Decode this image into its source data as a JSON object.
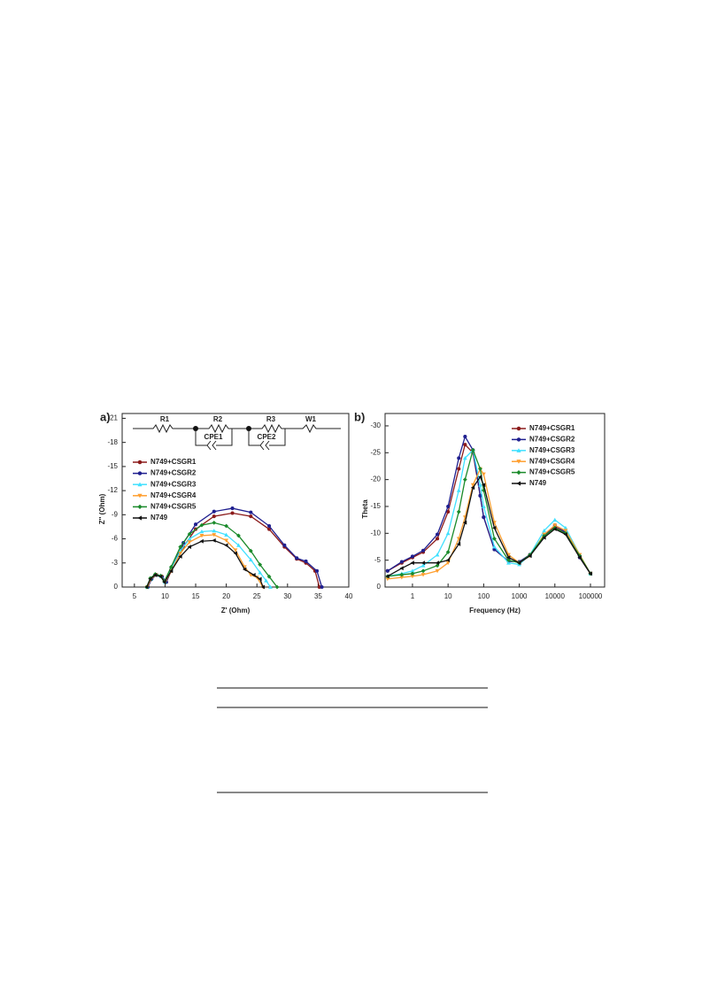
{
  "chart_data": [
    {
      "type": "line",
      "label": "a)",
      "x_label": "Z' (Ohm)",
      "y_label": "Z'' (Ohm)",
      "annotations": [
        "R1",
        "R2",
        "CPE1",
        "R3",
        "CPE2",
        "W1"
      ],
      "xlim": [
        3,
        40
      ],
      "xticks": [
        5,
        10,
        15,
        20,
        25,
        30,
        35,
        40
      ],
      "ylim": [
        0,
        -21.6
      ],
      "yticks": [
        0,
        -3,
        -6,
        -9,
        -12,
        -15,
        -18,
        -21
      ],
      "series": [
        {
          "name": "N749+CSGR1",
          "color": "#8b1a1a",
          "marker": "circle",
          "x": [
            7.2,
            7.8,
            8.6,
            9.5,
            10.2,
            11,
            13,
            15,
            18,
            21,
            24,
            27,
            29.5,
            31.5,
            33,
            34.5,
            35.2
          ],
          "values": [
            0,
            -1,
            -1.5,
            -1.3,
            -0.6,
            -2,
            -5,
            -7.2,
            -8.8,
            -9.2,
            -8.8,
            -7.2,
            -5,
            -3.5,
            -3,
            -2,
            0
          ]
        },
        {
          "name": "N749+CSGR2",
          "color": "#1f1f8f",
          "marker": "circle",
          "x": [
            7.2,
            7.8,
            8.6,
            9.5,
            10.2,
            11,
            13,
            15,
            18,
            21,
            24,
            27,
            29.5,
            31.5,
            33,
            34.8,
            35.6
          ],
          "values": [
            0,
            -1,
            -1.5,
            -1.3,
            -0.6,
            -2.2,
            -5.5,
            -7.8,
            -9.4,
            -9.8,
            -9.3,
            -7.6,
            -5.2,
            -3.6,
            -3.2,
            -2,
            0
          ]
        },
        {
          "name": "N749+CSGR3",
          "color": "#40e0ff",
          "marker": "triangle-up",
          "x": [
            7.1,
            7.7,
            8.5,
            9.4,
            10,
            11,
            12.5,
            14,
            16,
            18,
            20,
            22,
            24,
            25.5,
            26.5,
            27.2
          ],
          "values": [
            0,
            -1,
            -1.5,
            -1.3,
            -0.6,
            -2.2,
            -4.5,
            -6,
            -6.9,
            -7,
            -6.5,
            -5.2,
            -3.4,
            -1.8,
            -0.8,
            0
          ]
        },
        {
          "name": "N749+CSGR4",
          "color": "#ff9f30",
          "marker": "triangle-down",
          "x": [
            7.1,
            7.7,
            8.5,
            9.4,
            10,
            11,
            12.5,
            14,
            16,
            18,
            20,
            21.5,
            23,
            24,
            25,
            26
          ],
          "values": [
            0,
            -1,
            -1.5,
            -1.3,
            -0.6,
            -2,
            -4.2,
            -5.6,
            -6.4,
            -6.5,
            -5.8,
            -4.6,
            -2.5,
            -1.5,
            -1.2,
            0
          ]
        },
        {
          "name": "N749+CSGR5",
          "color": "#1a8a2a",
          "marker": "diamond",
          "x": [
            7,
            7.6,
            8.4,
            9.3,
            9.9,
            11,
            12.5,
            14,
            16,
            18,
            20,
            22,
            24,
            25.5,
            27,
            28.3
          ],
          "values": [
            0,
            -1.1,
            -1.6,
            -1.4,
            -0.7,
            -2.5,
            -5,
            -6.6,
            -7.7,
            -8,
            -7.6,
            -6.4,
            -4.5,
            -2.8,
            -1.3,
            0
          ]
        },
        {
          "name": "N749",
          "color": "#111111",
          "marker": "triangle-left",
          "x": [
            7,
            7.6,
            8.4,
            9.3,
            9.9,
            11,
            12.5,
            14,
            16,
            18,
            20,
            21.5,
            23,
            24.5,
            25.5,
            26
          ],
          "values": [
            0,
            -1,
            -1.5,
            -1.3,
            -0.6,
            -2,
            -3.8,
            -5,
            -5.7,
            -5.8,
            -5.2,
            -4.2,
            -2.2,
            -1.5,
            -1,
            0
          ]
        }
      ]
    },
    {
      "type": "line",
      "label": "b)",
      "x_label": "Frequency (Hz)",
      "y_label": "Theta",
      "log_x": true,
      "xlim": [
        0.17,
        250000
      ],
      "xticks": [
        1,
        10,
        100,
        1000,
        10000,
        100000
      ],
      "ylim": [
        0,
        -32.3
      ],
      "yticks": [
        0,
        -5,
        -10,
        -15,
        -20,
        -25,
        -30
      ],
      "series": [
        {
          "name": "N749+CSGR1",
          "color": "#8b1a1a",
          "marker": "circle",
          "x": [
            0.2,
            0.5,
            1,
            2,
            5,
            10,
            20,
            30,
            50,
            80,
            100,
            200,
            500,
            1000,
            2000,
            5000,
            10000,
            20000,
            50000,
            100000
          ],
          "values": [
            -3,
            -4.5,
            -5.5,
            -6.5,
            -9,
            -14,
            -22,
            -26.5,
            -25,
            -17,
            -13,
            -7,
            -4.8,
            -4.7,
            -6,
            -9.5,
            -11.2,
            -10,
            -5.5,
            -2.5
          ]
        },
        {
          "name": "N749+CSGR2",
          "color": "#1f1f8f",
          "marker": "circle",
          "x": [
            0.2,
            0.5,
            1,
            2,
            5,
            10,
            20,
            30,
            50,
            80,
            100,
            200,
            500,
            1000,
            2000,
            5000,
            10000,
            20000,
            50000,
            100000
          ],
          "values": [
            -3,
            -4.7,
            -5.7,
            -6.8,
            -9.8,
            -15,
            -24,
            -28,
            -25.5,
            -17,
            -13,
            -7,
            -4.8,
            -4.7,
            -6,
            -9.5,
            -11.5,
            -10.2,
            -5.5,
            -2.5
          ]
        },
        {
          "name": "N749+CSGR3",
          "color": "#40e0ff",
          "marker": "triangle-up",
          "x": [
            0.2,
            0.5,
            1,
            2,
            5,
            10,
            20,
            30,
            50,
            80,
            100,
            200,
            500,
            1000,
            2000,
            5000,
            10000,
            20000,
            50000,
            100000
          ],
          "values": [
            -2,
            -2.5,
            -3,
            -4,
            -6,
            -10,
            -18,
            -24,
            -25.5,
            -19,
            -15,
            -7.5,
            -4.5,
            -4.2,
            -6,
            -10.5,
            -12.5,
            -11,
            -6,
            -2.5
          ]
        },
        {
          "name": "N749+CSGR4",
          "color": "#ff9f30",
          "marker": "triangle-down",
          "x": [
            0.2,
            0.5,
            1,
            2,
            5,
            10,
            20,
            30,
            50,
            80,
            100,
            200,
            500,
            1000,
            2000,
            5000,
            10000,
            20000,
            50000,
            100000
          ],
          "values": [
            -1.5,
            -1.8,
            -2,
            -2.3,
            -3,
            -4.5,
            -9,
            -13,
            -19,
            -22,
            -21,
            -12,
            -6,
            -4.5,
            -5.8,
            -9.8,
            -11.5,
            -10.5,
            -6,
            -2.5
          ]
        },
        {
          "name": "N749+CSGR5",
          "color": "#1a8a2a",
          "marker": "diamond",
          "x": [
            0.2,
            0.5,
            1,
            2,
            5,
            10,
            20,
            30,
            50,
            80,
            100,
            200,
            500,
            1000,
            2000,
            5000,
            10000,
            20000,
            50000,
            100000
          ],
          "values": [
            -2,
            -2.3,
            -2.5,
            -3,
            -4,
            -6.5,
            -14,
            -20,
            -25.5,
            -22,
            -18,
            -9,
            -5,
            -4.5,
            -6,
            -9.5,
            -11,
            -10,
            -5.8,
            -2.5
          ]
        },
        {
          "name": "N749",
          "color": "#111111",
          "marker": "triangle-left",
          "x": [
            0.2,
            0.5,
            1,
            2,
            5,
            10,
            20,
            30,
            50,
            80,
            100,
            200,
            500,
            1000,
            2000,
            5000,
            10000,
            20000,
            50000,
            100000
          ],
          "values": [
            -2,
            -3.5,
            -4.5,
            -4.5,
            -4.5,
            -5,
            -8,
            -12,
            -18.5,
            -20.5,
            -19,
            -11,
            -5.5,
            -4.5,
            -5.8,
            -9.2,
            -10.8,
            -9.8,
            -5.5,
            -2.5
          ]
        }
      ]
    }
  ]
}
